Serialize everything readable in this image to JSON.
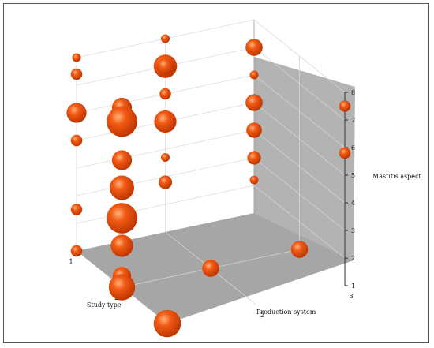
{
  "chart_data": {
    "type": "scatter",
    "subtype": "3d-bubble",
    "title": "",
    "xlabel": "Study type",
    "ylabel": "Production system",
    "zlabel": "Mastitis aspect",
    "x_ticks": [
      "1",
      "2",
      "3"
    ],
    "y_ticks": [
      "1",
      "2",
      "3"
    ],
    "z_ticks": [
      "1",
      "2",
      "3",
      "4",
      "5",
      "6",
      "7",
      "8"
    ],
    "xlim": [
      1,
      3
    ],
    "ylim": [
      1,
      3
    ],
    "zlim": [
      1,
      8
    ],
    "grid": true,
    "colors": {
      "bubble": "#f25a14",
      "bubble_dark": "#b83200",
      "bubble_light": "#ffb27a",
      "wall": "#b3b3b3",
      "floor": "#a6a6a6",
      "grid_line": "#dddddd"
    },
    "points": [
      {
        "x": 1,
        "y": 1,
        "z": 8,
        "size": 1
      },
      {
        "x": 1,
        "y": 1,
        "z": 7.4,
        "size": 2
      },
      {
        "x": 1,
        "y": 1,
        "z": 6,
        "size": 7
      },
      {
        "x": 1,
        "y": 1,
        "z": 5,
        "size": 2
      },
      {
        "x": 1,
        "y": 1,
        "z": 2.5,
        "size": 2
      },
      {
        "x": 1,
        "y": 1,
        "z": 1,
        "size": 2
      },
      {
        "x": 2,
        "y": 1,
        "z": 7.5,
        "size": 7
      },
      {
        "x": 2,
        "y": 1,
        "z": 7,
        "size": 18
      },
      {
        "x": 2,
        "y": 1,
        "z": 5.6,
        "size": 7
      },
      {
        "x": 2,
        "y": 1,
        "z": 4.6,
        "size": 11
      },
      {
        "x": 2,
        "y": 1,
        "z": 3.5,
        "size": 18
      },
      {
        "x": 2,
        "y": 1,
        "z": 2.5,
        "size": 9
      },
      {
        "x": 2,
        "y": 1,
        "z": 1.4,
        "size": 6
      },
      {
        "x": 2,
        "y": 1,
        "z": 1,
        "size": 13
      },
      {
        "x": 3,
        "y": 1,
        "z": 1,
        "size": 14
      },
      {
        "x": 1,
        "y": 2,
        "z": 8,
        "size": 1
      },
      {
        "x": 1,
        "y": 2,
        "z": 7,
        "size": 10
      },
      {
        "x": 1,
        "y": 2,
        "z": 7,
        "size": 5
      },
      {
        "x": 1,
        "y": 2,
        "z": 6,
        "size": 2
      },
      {
        "x": 1,
        "y": 2,
        "z": 5,
        "size": 9
      },
      {
        "x": 1,
        "y": 2,
        "z": 3.7,
        "size": 1
      },
      {
        "x": 1,
        "y": 2,
        "z": 2.8,
        "size": 3
      },
      {
        "x": 2,
        "y": 2,
        "z": 1,
        "size": 5
      },
      {
        "x": 1,
        "y": 3,
        "z": 7,
        "size": 5
      },
      {
        "x": 1,
        "y": 3,
        "z": 6,
        "size": 1
      },
      {
        "x": 1,
        "y": 3,
        "z": 5,
        "size": 5
      },
      {
        "x": 1,
        "y": 3,
        "z": 4,
        "size": 4
      },
      {
        "x": 1,
        "y": 3,
        "z": 3,
        "size": 3
      },
      {
        "x": 1,
        "y": 3,
        "z": 2.2,
        "size": 1
      },
      {
        "x": 2,
        "y": 3,
        "z": 1,
        "size": 5
      },
      {
        "x": 3,
        "y": 3,
        "z": 7.5,
        "size": 2
      },
      {
        "x": 3,
        "y": 3,
        "z": 5.8,
        "size": 2
      }
    ]
  }
}
